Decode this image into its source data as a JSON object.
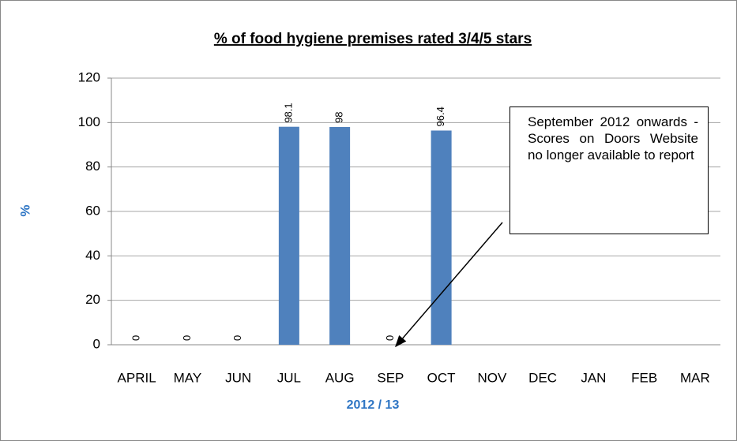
{
  "chart_data": {
    "type": "bar",
    "title": "% of food hygiene premises rated 3/4/5 stars",
    "y_label": "%",
    "x_label": "2012 / 13",
    "categories": [
      "APRIL",
      "MAY",
      "JUN",
      "JUL",
      "AUG",
      "SEP",
      "OCT",
      "NOV",
      "DEC",
      "JAN",
      "FEB",
      "MAR"
    ],
    "values": [
      0,
      0,
      0,
      98.1,
      98,
      0,
      96.4,
      null,
      null,
      null,
      null,
      null
    ],
    "color": "#4f81bd",
    "ylim": [
      0,
      120
    ],
    "yticks": [
      0,
      20,
      40,
      60,
      80,
      100,
      120
    ],
    "grid": true,
    "annotation": "September 2012 onwards - Scores on Doors Website no longer available to report"
  }
}
